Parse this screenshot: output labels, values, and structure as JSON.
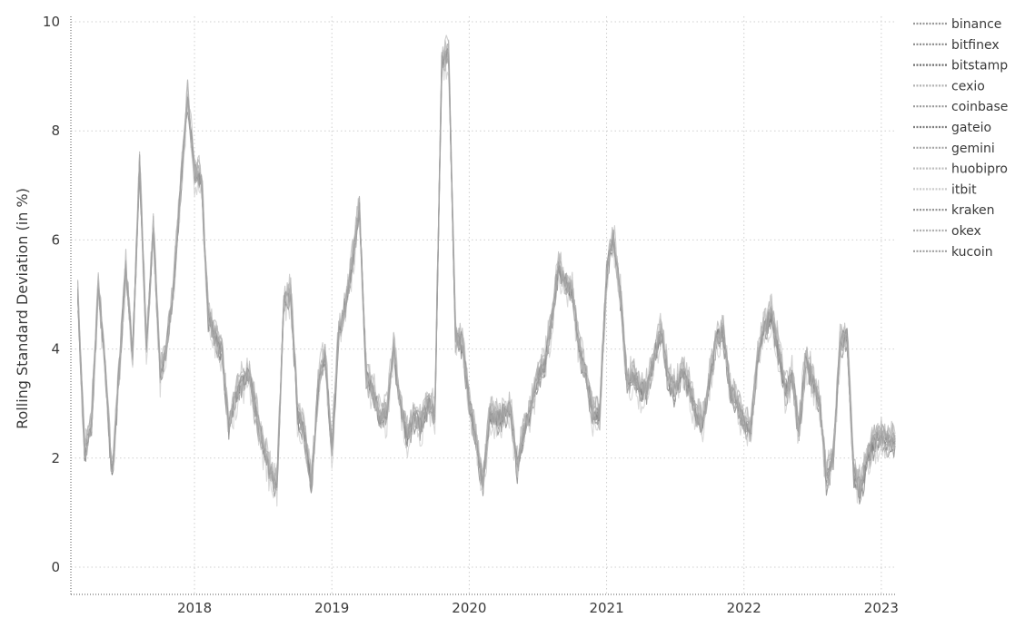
{
  "chart_data": {
    "type": "line",
    "title": "",
    "xlabel": "",
    "ylabel": "Rolling Standard Deviation (in %)",
    "xlim": [
      2017.1,
      2023.1
    ],
    "ylim": [
      -0.5,
      10.1
    ],
    "x_ticks": [
      {
        "value": 2018,
        "label": "2018"
      },
      {
        "value": 2019,
        "label": "2019"
      },
      {
        "value": 2020,
        "label": "2020"
      },
      {
        "value": 2021,
        "label": "2021"
      },
      {
        "value": 2022,
        "label": "2022"
      },
      {
        "value": 2023,
        "label": "2023"
      }
    ],
    "y_ticks": [
      {
        "value": 0,
        "label": "0"
      },
      {
        "value": 2,
        "label": "2"
      },
      {
        "value": 4,
        "label": "4"
      },
      {
        "value": 6,
        "label": "6"
      },
      {
        "value": 8,
        "label": "8"
      },
      {
        "value": 10,
        "label": "10"
      }
    ],
    "grid": true,
    "legend_position": "top-right",
    "x": [
      2017.15,
      2017.2,
      2017.25,
      2017.3,
      2017.35,
      2017.4,
      2017.45,
      2017.5,
      2017.55,
      2017.6,
      2017.65,
      2017.7,
      2017.75,
      2017.8,
      2017.85,
      2017.9,
      2017.95,
      2018.0,
      2018.05,
      2018.1,
      2018.15,
      2018.2,
      2018.25,
      2018.3,
      2018.35,
      2018.4,
      2018.45,
      2018.5,
      2018.55,
      2018.6,
      2018.65,
      2018.7,
      2018.75,
      2018.8,
      2018.85,
      2018.9,
      2018.95,
      2019.0,
      2019.05,
      2019.1,
      2019.15,
      2019.2,
      2019.25,
      2019.3,
      2019.35,
      2019.4,
      2019.45,
      2019.5,
      2019.55,
      2019.6,
      2019.65,
      2019.7,
      2019.75,
      2019.8,
      2019.85,
      2019.9,
      2019.95,
      2020.0,
      2020.05,
      2020.1,
      2020.15,
      2020.2,
      2020.25,
      2020.3,
      2020.35,
      2020.4,
      2020.45,
      2020.5,
      2020.55,
      2020.6,
      2020.65,
      2020.7,
      2020.75,
      2020.8,
      2020.85,
      2020.9,
      2020.95,
      2021.0,
      2021.05,
      2021.1,
      2021.15,
      2021.2,
      2021.25,
      2021.3,
      2021.35,
      2021.4,
      2021.45,
      2021.5,
      2021.55,
      2021.6,
      2021.65,
      2021.7,
      2021.75,
      2021.8,
      2021.85,
      2021.9,
      2021.95,
      2022.0,
      2022.05,
      2022.1,
      2022.15,
      2022.2,
      2022.25,
      2022.3,
      2022.35,
      2022.4,
      2022.45,
      2022.5,
      2022.55,
      2022.6,
      2022.65,
      2022.7,
      2022.75,
      2022.8,
      2022.85,
      2022.9,
      2022.95,
      2023.0,
      2023.05,
      2023.1
    ],
    "base_values": [
      4.9,
      2.1,
      2.6,
      5.1,
      3.6,
      1.6,
      3.5,
      5.5,
      3.9,
      7.4,
      4.0,
      6.2,
      3.5,
      4.1,
      5.2,
      7.0,
      8.6,
      7.2,
      7.1,
      4.6,
      4.2,
      3.9,
      2.6,
      3.1,
      3.4,
      3.5,
      2.8,
      2.2,
      1.7,
      1.5,
      4.8,
      5.0,
      2.8,
      2.4,
      1.5,
      3.3,
      3.9,
      2.1,
      4.3,
      4.8,
      5.6,
      6.6,
      3.5,
      3.2,
      2.7,
      2.8,
      4.0,
      2.9,
      2.4,
      2.7,
      2.6,
      3.0,
      2.8,
      9.2,
      9.4,
      4.2,
      4.1,
      3.0,
      2.3,
      1.5,
      2.8,
      2.7,
      2.8,
      2.9,
      1.8,
      2.5,
      2.9,
      3.5,
      3.7,
      4.5,
      5.5,
      5.2,
      5.0,
      4.0,
      3.5,
      2.8,
      2.8,
      5.4,
      6.0,
      5.0,
      3.4,
      3.5,
      3.2,
      3.3,
      3.9,
      4.3,
      3.4,
      3.2,
      3.6,
      3.3,
      2.8,
      2.6,
      3.4,
      4.2,
      4.3,
      3.2,
      3.0,
      2.6,
      2.5,
      3.8,
      4.4,
      4.6,
      4.0,
      3.2,
      3.5,
      2.5,
      3.8,
      3.4,
      3.0,
      1.6,
      2.0,
      4.1,
      4.2,
      1.7,
      1.4,
      2.0,
      2.3,
      2.4,
      2.3,
      2.3
    ],
    "series": [
      {
        "name": "binance",
        "color": "#9a9a9a",
        "offset": 0.06,
        "amp": 0.18
      },
      {
        "name": "bitfinex",
        "color": "#8a8a8a",
        "offset": -0.05,
        "amp": 0.16
      },
      {
        "name": "bitstamp",
        "color": "#6f6f6f",
        "offset": 0.0,
        "amp": 0.12
      },
      {
        "name": "cexio",
        "color": "#b3b3b3",
        "offset": 0.12,
        "amp": 0.25
      },
      {
        "name": "coinbase",
        "color": "#999999",
        "offset": 0.03,
        "amp": 0.14
      },
      {
        "name": "gateio",
        "color": "#7e7e7e",
        "offset": -0.08,
        "amp": 0.22
      },
      {
        "name": "gemini",
        "color": "#a6a6a6",
        "offset": 0.02,
        "amp": 0.15
      },
      {
        "name": "huobipro",
        "color": "#bdbdbd",
        "offset": 0.15,
        "amp": 0.28
      },
      {
        "name": "itbit",
        "color": "#cccccc",
        "offset": -0.12,
        "amp": 0.3
      },
      {
        "name": "kraken",
        "color": "#8f8f8f",
        "offset": 0.05,
        "amp": 0.16
      },
      {
        "name": "okex",
        "color": "#b0b0b0",
        "offset": 0.1,
        "amp": 0.24
      },
      {
        "name": "kucoin",
        "color": "#a0a0a0",
        "offset": -0.02,
        "amp": 0.2
      }
    ]
  }
}
